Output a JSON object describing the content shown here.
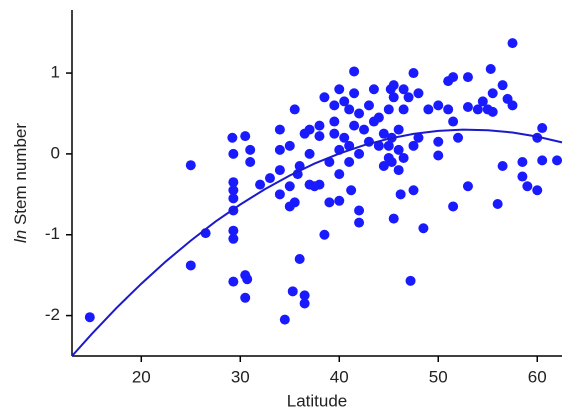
{
  "chart_data": {
    "type": "scatter",
    "xlabel": "Latitude",
    "ylabel": {
      "italic": "ln",
      "text": "Stem number"
    },
    "xlim": [
      13,
      62.5
    ],
    "ylim": [
      -2.5,
      1.78
    ],
    "xticks": [
      20,
      30,
      40,
      50,
      60
    ],
    "yticks": [
      -2,
      -1,
      0,
      1
    ],
    "point_color": "#1a1aff",
    "line_color": "#1a1acc",
    "points": {
      "x": [
        14.8,
        25,
        25,
        26.5,
        29.2,
        29.3,
        29.3,
        29.3,
        29.3,
        29.3,
        29.3,
        29.3,
        29.3,
        30.5,
        30.5,
        30.7,
        30.5,
        31,
        31,
        32,
        33,
        34,
        34,
        34,
        34,
        34.5,
        35,
        35,
        35,
        35.3,
        35.5,
        35.5,
        35.8,
        36,
        36,
        36.5,
        36.5,
        36.5,
        37,
        37,
        37,
        37.5,
        38,
        38,
        38,
        38.5,
        38.5,
        39,
        39,
        39.5,
        39.5,
        39.5,
        40,
        40,
        40,
        40,
        40.5,
        40.5,
        41,
        41,
        41,
        41.2,
        41.5,
        41.5,
        41.5,
        42,
        42,
        42,
        42,
        42.5,
        43,
        43,
        43.5,
        43.5,
        44,
        44,
        44.5,
        44.5,
        45,
        45,
        45,
        45.2,
        45.3,
        45.3,
        45.5,
        45.5,
        45.5,
        46,
        46,
        46,
        46.2,
        46.5,
        46.5,
        46.5,
        47,
        47.2,
        47.5,
        47.5,
        47.5,
        48,
        48,
        48.5,
        49,
        50,
        50,
        50,
        51,
        51,
        51.5,
        51.5,
        51.5,
        52,
        53,
        53,
        53,
        54,
        54.5,
        55,
        55.3,
        55.5,
        55.5,
        56,
        56.5,
        56.5,
        57,
        57.5,
        57.5,
        58.5,
        58.5,
        59,
        60,
        60,
        60.5,
        60.5,
        62
      ],
      "y": [
        -2.02,
        -0.14,
        -1.38,
        -0.98,
        0.2,
        0.0,
        -0.35,
        -0.45,
        -0.55,
        -0.7,
        -0.95,
        -1.05,
        -1.58,
        0.22,
        -1.5,
        -1.55,
        -1.78,
        -0.1,
        0.05,
        -0.38,
        -0.3,
        -0.5,
        -0.2,
        0.05,
        0.3,
        -2.05,
        -0.4,
        -0.65,
        0.1,
        -1.7,
        0.55,
        -0.6,
        -0.25,
        -1.3,
        -0.15,
        0.25,
        -1.75,
        -1.85,
        -0.38,
        0.3,
        0.0,
        -0.4,
        0.22,
        0.35,
        -0.38,
        -1.0,
        0.7,
        -0.1,
        -0.6,
        0.25,
        0.4,
        0.6,
        0.8,
        0.05,
        -0.25,
        -0.58,
        0.65,
        0.2,
        0.55,
        0.1,
        -0.1,
        -0.45,
        1.02,
        0.75,
        0.35,
        0.5,
        0.0,
        -0.7,
        -0.85,
        0.3,
        0.6,
        0.15,
        0.4,
        0.8,
        0.45,
        0.1,
        0.25,
        -0.15,
        0.55,
        0.1,
        -0.05,
        0.8,
        0.2,
        -0.1,
        -0.8,
        0.85,
        0.7,
        0.3,
        0.05,
        -0.2,
        -0.5,
        0.8,
        0.55,
        -0.05,
        0.7,
        -1.57,
        1.0,
        0.1,
        -0.45,
        0.75,
        0.2,
        -0.92,
        0.55,
        0.6,
        0.15,
        -0.02,
        0.9,
        0.55,
        0.95,
        0.4,
        -0.65,
        0.2,
        0.58,
        -0.4,
        0.95,
        0.55,
        0.65,
        0.55,
        1.05,
        0.75,
        0.52,
        -0.62,
        -0.15,
        0.85,
        0.68,
        0.6,
        1.37,
        -0.1,
        -0.28,
        -0.4,
        0.2,
        -0.45,
        0.32,
        -0.08,
        -0.08
      ]
    },
    "fit": {
      "x": [
        13,
        15,
        17.5,
        20,
        22.5,
        25,
        27.5,
        30,
        32.5,
        35,
        37.5,
        40,
        42.5,
        45,
        47.5,
        50,
        52.5,
        55,
        57.5,
        60,
        62.5
      ],
      "y": [
        -2.5,
        -2.227,
        -1.905,
        -1.606,
        -1.328,
        -1.072,
        -0.838,
        -0.626,
        -0.435,
        -0.267,
        -0.12,
        0.004,
        0.107,
        0.188,
        0.247,
        0.284,
        0.3,
        0.293,
        0.265,
        0.214,
        0.142
      ]
    }
  }
}
